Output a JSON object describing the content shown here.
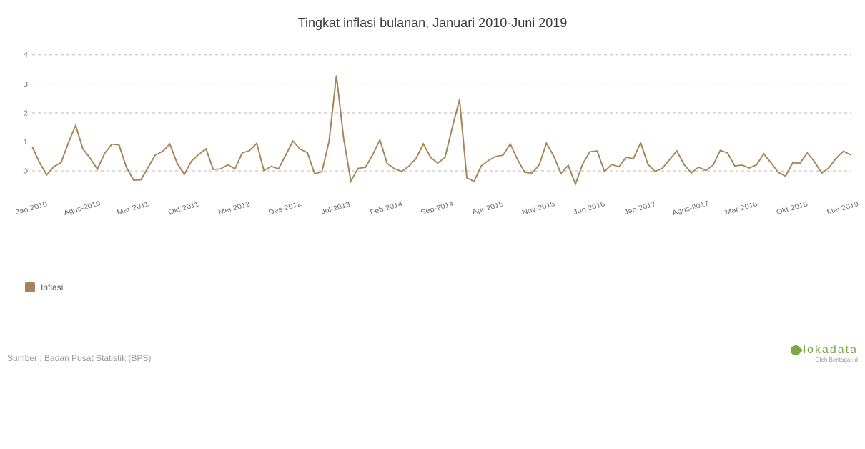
{
  "title": "Tingkat inflasi bulanan, Januari 2010-Juni 2019",
  "chart": {
    "type": "line",
    "series_name": "Inflasi",
    "series_color": "#a68456",
    "background_color": "#ffffff",
    "grid_color": "#b0b0b0",
    "grid_dash": "4 4",
    "line_width": 2,
    "title_fontsize": 18,
    "title_color": "#3a3a3a",
    "label_fontsize": 12,
    "label_color": "#7a7a7a",
    "xlabel_fontsize": 11,
    "ylim": [
      -0.5,
      4.2
    ],
    "yticks": [
      0,
      1,
      2,
      3,
      4
    ],
    "xticks": [
      "Jan-2010",
      "Agus-2010",
      "Mar-2011",
      "Okt-2011",
      "Mei-2012",
      "Des-2012",
      "Jul-2013",
      "Feb-2014",
      "Sep-2014",
      "Apr-2015",
      "Nov-2015",
      "Jun-2016",
      "Jan-2017",
      "Agus-2017",
      "Mar-2018",
      "Okt-2018",
      "Mei-2019"
    ],
    "xtick_step_months": 7,
    "values": [
      0.84,
      0.3,
      -0.14,
      0.15,
      0.29,
      0.97,
      1.57,
      0.76,
      0.44,
      0.06,
      0.6,
      0.92,
      0.89,
      0.13,
      -0.32,
      -0.31,
      0.12,
      0.55,
      0.67,
      0.93,
      0.27,
      -0.12,
      0.34,
      0.57,
      0.76,
      0.05,
      0.07,
      0.21,
      0.07,
      0.62,
      0.7,
      0.95,
      0.01,
      0.16,
      0.07,
      0.54,
      1.03,
      0.75,
      0.63,
      -0.1,
      -0.03,
      1.03,
      3.29,
      1.12,
      -0.35,
      0.09,
      0.12,
      0.55,
      1.07,
      0.26,
      0.08,
      -0.02,
      0.16,
      0.43,
      0.93,
      0.47,
      0.27,
      0.47,
      1.5,
      2.46,
      -0.24,
      -0.36,
      0.17,
      0.36,
      0.5,
      0.54,
      0.93,
      0.39,
      -0.05,
      -0.08,
      0.21,
      0.96,
      0.51,
      -0.09,
      0.19,
      -0.45,
      0.24,
      0.66,
      0.69,
      -0.02,
      0.22,
      0.14,
      0.47,
      0.42,
      0.97,
      0.23,
      -0.02,
      0.09,
      0.39,
      0.69,
      0.22,
      -0.07,
      0.13,
      0.01,
      0.2,
      0.71,
      0.62,
      0.17,
      0.2,
      0.1,
      0.21,
      0.59,
      0.28,
      -0.05,
      -0.18,
      0.28,
      0.27,
      0.62,
      0.32,
      -0.08,
      0.11,
      0.44,
      0.68,
      0.55
    ]
  },
  "legend": {
    "label": "Inflasi",
    "swatch_color": "#a68456"
  },
  "source": "Sumber : Badan Pusat Statistik (BPS)",
  "brand": {
    "name": "lokadata",
    "subtitle": "Oleh Beritagar.id",
    "color": "#7aa843"
  }
}
